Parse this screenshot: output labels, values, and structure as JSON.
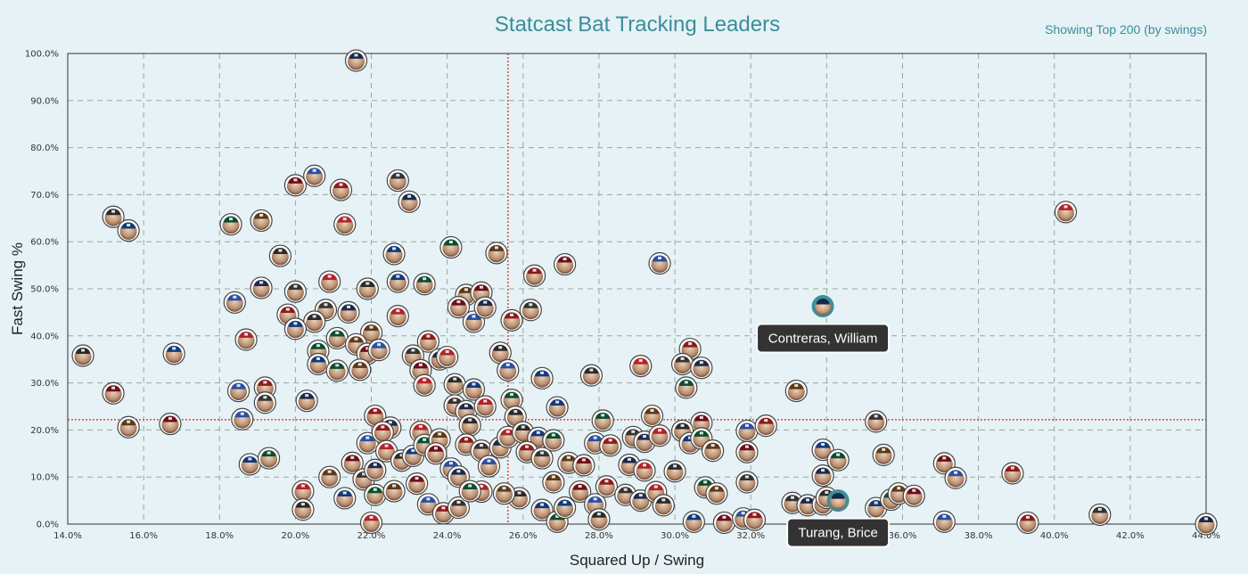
{
  "chart_data": {
    "type": "scatter",
    "title": "Statcast Bat Tracking Leaders",
    "subtitle": "Showing Top 200 (by swings)",
    "xlabel": "Squared Up / Swing",
    "ylabel": "Fast Swing %",
    "xlim": [
      14.0,
      44.0
    ],
    "ylim": [
      0.0,
      100.0
    ],
    "x_ticks": [
      "14.0%",
      "16.0%",
      "18.0%",
      "20.0%",
      "22.0%",
      "24.0%",
      "26.0%",
      "28.0%",
      "30.0%",
      "32.0%",
      "34.0%",
      "36.0%",
      "38.0%",
      "40.0%",
      "42.0%",
      "44.0%"
    ],
    "y_ticks": [
      "0.0%",
      "10.0%",
      "20.0%",
      "30.0%",
      "40.0%",
      "50.0%",
      "60.0%",
      "70.0%",
      "80.0%",
      "90.0%",
      "100.0%"
    ],
    "grid": true,
    "reference_lines": {
      "x_average": 25.6,
      "y_average": 22.2
    },
    "highlighted": [
      {
        "name": "Contreras, William",
        "x": 33.9,
        "y": 46.3
      },
      {
        "name": "Turang, Brice",
        "x": 34.3,
        "y": 5.0
      }
    ],
    "points": [
      [
        21.6,
        98.5
      ],
      [
        40.3,
        66.3
      ],
      [
        15.2,
        65.3
      ],
      [
        15.6,
        62.4
      ],
      [
        18.3,
        63.7
      ],
      [
        19.1,
        64.5
      ],
      [
        20.0,
        72.0
      ],
      [
        20.5,
        74.0
      ],
      [
        21.2,
        71.0
      ],
      [
        22.7,
        73.0
      ],
      [
        23.0,
        68.5
      ],
      [
        21.3,
        63.7
      ],
      [
        19.6,
        57.0
      ],
      [
        22.6,
        57.4
      ],
      [
        24.1,
        58.8
      ],
      [
        25.3,
        57.6
      ],
      [
        27.1,
        55.2
      ],
      [
        29.6,
        55.4
      ],
      [
        26.3,
        52.8
      ],
      [
        20.0,
        49.4
      ],
      [
        19.1,
        50.2
      ],
      [
        20.9,
        51.5
      ],
      [
        21.9,
        50.0
      ],
      [
        22.7,
        51.5
      ],
      [
        23.4,
        51.0
      ],
      [
        24.5,
        48.7
      ],
      [
        24.9,
        49.2
      ],
      [
        18.4,
        47.1
      ],
      [
        19.8,
        44.5
      ],
      [
        20.8,
        45.5
      ],
      [
        21.4,
        45.0
      ],
      [
        22.7,
        44.2
      ],
      [
        20.5,
        43.0
      ],
      [
        20.0,
        41.5
      ],
      [
        21.1,
        39.5
      ],
      [
        22.0,
        40.7
      ],
      [
        24.3,
        46.1
      ],
      [
        24.7,
        43.0
      ],
      [
        25.7,
        43.3
      ],
      [
        26.2,
        45.5
      ],
      [
        25.0,
        46.0
      ],
      [
        18.7,
        39.2
      ],
      [
        14.4,
        35.8
      ],
      [
        16.8,
        36.2
      ],
      [
        20.6,
        36.8
      ],
      [
        21.6,
        38.2
      ],
      [
        21.9,
        36.2
      ],
      [
        22.2,
        37.0
      ],
      [
        23.5,
        38.8
      ],
      [
        23.1,
        35.8
      ],
      [
        23.8,
        35.0
      ],
      [
        24.0,
        35.5
      ],
      [
        25.4,
        36.4
      ],
      [
        20.6,
        34.0
      ],
      [
        21.1,
        32.6
      ],
      [
        21.7,
        32.8
      ],
      [
        23.3,
        32.7
      ],
      [
        25.6,
        32.7
      ],
      [
        30.4,
        37.2
      ],
      [
        30.2,
        34.0
      ],
      [
        30.7,
        33.2
      ],
      [
        29.1,
        33.6
      ],
      [
        27.8,
        31.6
      ],
      [
        26.5,
        31.0
      ],
      [
        30.3,
        29.0
      ],
      [
        33.2,
        28.3
      ],
      [
        15.2,
        27.8
      ],
      [
        18.5,
        28.3
      ],
      [
        19.2,
        29.0
      ],
      [
        19.2,
        25.8
      ],
      [
        20.3,
        26.2
      ],
      [
        23.4,
        29.5
      ],
      [
        24.2,
        29.7
      ],
      [
        24.7,
        28.6
      ],
      [
        25.7,
        26.4
      ],
      [
        15.6,
        20.6
      ],
      [
        16.7,
        21.3
      ],
      [
        18.6,
        22.3
      ],
      [
        22.1,
        23.0
      ],
      [
        24.2,
        25.2
      ],
      [
        24.5,
        24.0
      ],
      [
        25.0,
        25.0
      ],
      [
        25.8,
        22.8
      ],
      [
        26.9,
        24.8
      ],
      [
        28.1,
        22.0
      ],
      [
        29.4,
        23.0
      ],
      [
        30.7,
        21.5
      ],
      [
        31.9,
        19.8
      ],
      [
        32.4,
        20.9
      ],
      [
        35.3,
        21.8
      ],
      [
        22.5,
        20.5
      ],
      [
        23.3,
        19.6
      ],
      [
        24.6,
        21.0
      ],
      [
        18.8,
        12.7
      ],
      [
        19.3,
        14.0
      ],
      [
        20.9,
        10.0
      ],
      [
        21.5,
        13.0
      ],
      [
        21.9,
        17.2
      ],
      [
        22.3,
        19.5
      ],
      [
        21.8,
        9.5
      ],
      [
        22.1,
        11.5
      ],
      [
        22.4,
        15.5
      ],
      [
        22.8,
        13.5
      ],
      [
        23.1,
        14.5
      ],
      [
        23.4,
        16.8
      ],
      [
        23.8,
        18.0
      ],
      [
        23.7,
        15.0
      ],
      [
        24.1,
        11.8
      ],
      [
        24.5,
        16.9
      ],
      [
        24.9,
        15.6
      ],
      [
        25.4,
        16.3
      ],
      [
        25.6,
        18.5
      ],
      [
        26.0,
        19.5
      ],
      [
        26.4,
        18.3
      ],
      [
        26.8,
        17.8
      ],
      [
        27.2,
        13.0
      ],
      [
        27.6,
        12.5
      ],
      [
        27.9,
        17.2
      ],
      [
        28.3,
        16.7
      ],
      [
        28.9,
        18.5
      ],
      [
        29.2,
        17.5
      ],
      [
        29.6,
        18.8
      ],
      [
        30.2,
        19.8
      ],
      [
        30.4,
        17.2
      ],
      [
        30.7,
        18.2
      ],
      [
        31.0,
        15.6
      ],
      [
        31.9,
        15.3
      ],
      [
        25.1,
        12.3
      ],
      [
        26.1,
        15.3
      ],
      [
        26.5,
        14.0
      ],
      [
        28.8,
        12.6
      ],
      [
        29.2,
        11.4
      ],
      [
        30.0,
        11.2
      ],
      [
        33.9,
        15.8
      ],
      [
        34.3,
        13.6
      ],
      [
        35.5,
        14.7
      ],
      [
        37.1,
        12.9
      ],
      [
        37.4,
        9.8
      ],
      [
        38.9,
        10.8
      ],
      [
        31.9,
        8.9
      ],
      [
        33.9,
        10.3
      ],
      [
        20.2,
        7.0
      ],
      [
        20.2,
        3.1
      ],
      [
        21.3,
        5.5
      ],
      [
        22.1,
        6.2
      ],
      [
        22.6,
        7.0
      ],
      [
        23.2,
        8.6
      ],
      [
        23.5,
        4.2
      ],
      [
        23.9,
        2.3
      ],
      [
        24.3,
        3.5
      ],
      [
        24.3,
        10.1
      ],
      [
        24.9,
        6.9
      ],
      [
        25.9,
        5.5
      ],
      [
        26.5,
        3.0
      ],
      [
        26.9,
        0.5
      ],
      [
        26.8,
        8.9
      ],
      [
        27.5,
        6.9
      ],
      [
        27.9,
        4.2
      ],
      [
        28.2,
        8.0
      ],
      [
        28.7,
        6.2
      ],
      [
        29.1,
        5.0
      ],
      [
        29.5,
        6.8
      ],
      [
        29.7,
        4.0
      ],
      [
        30.5,
        0.5
      ],
      [
        30.8,
        7.8
      ],
      [
        31.1,
        6.5
      ],
      [
        31.3,
        0.3
      ],
      [
        31.8,
        1.2
      ],
      [
        32.1,
        0.9
      ],
      [
        33.1,
        4.5
      ],
      [
        33.5,
        4.0
      ],
      [
        33.9,
        4.2
      ],
      [
        34.0,
        5.6
      ],
      [
        35.3,
        3.4
      ],
      [
        35.7,
        5.2
      ],
      [
        35.9,
        6.5
      ],
      [
        36.3,
        6.0
      ],
      [
        37.1,
        0.5
      ],
      [
        39.3,
        0.3
      ],
      [
        41.2,
        2.0
      ],
      [
        44.0,
        0.0
      ],
      [
        22.0,
        0.3
      ],
      [
        28.0,
        1.0
      ],
      [
        27.1,
        3.5
      ],
      [
        24.6,
        7.0
      ],
      [
        25.5,
        6.5
      ]
    ]
  }
}
